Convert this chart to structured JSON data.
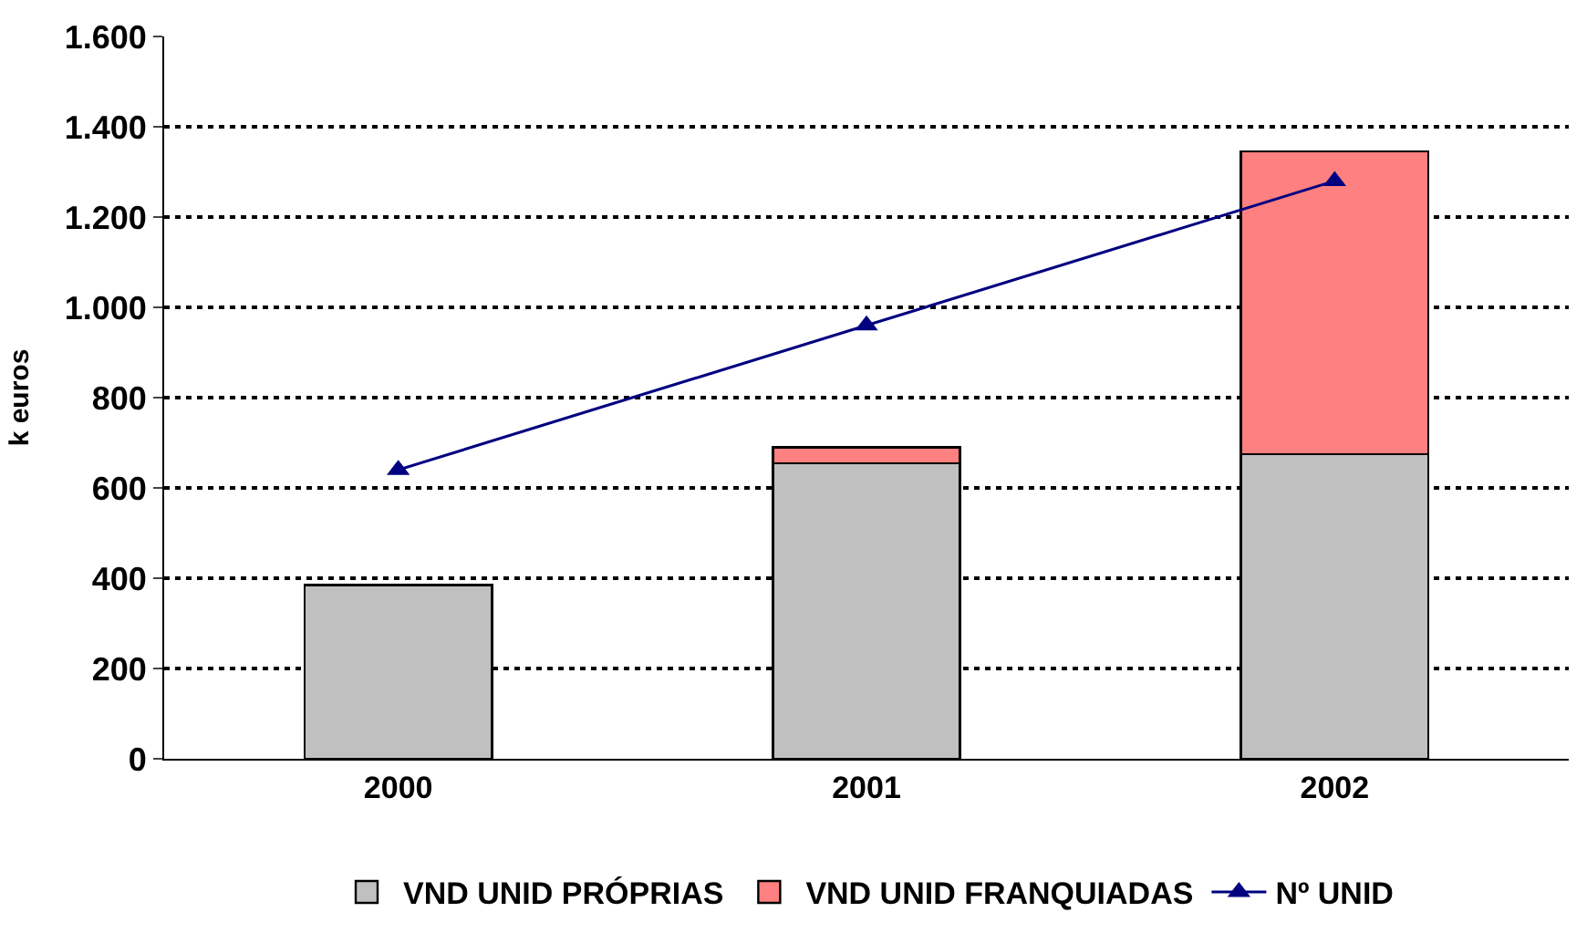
{
  "chart_data": {
    "type": "bar",
    "ylabel": "k euros",
    "categories": [
      "2000",
      "2001",
      "2002"
    ],
    "stacked": true,
    "series": [
      {
        "name": "VND UNID PRÓPRIAS",
        "color": "#c0c0c0",
        "values": [
          385,
          655,
          675
        ]
      },
      {
        "name": "VND UNID FRANQUIADAS",
        "color": "#ff8080",
        "values": [
          null,
          35,
          670
        ]
      },
      {
        "name": "Nº UNID",
        "type": "line",
        "color": "#000080",
        "values": [
          640,
          960,
          1280
        ],
        "marker": "triangle"
      }
    ],
    "ylim": [
      0,
      1600
    ],
    "yticks": [
      {
        "value": 0,
        "label": "0"
      },
      {
        "value": 200,
        "label": "200"
      },
      {
        "value": 400,
        "label": "400"
      },
      {
        "value": 600,
        "label": "600"
      },
      {
        "value": 800,
        "label": "800"
      },
      {
        "value": 1000,
        "label": "1.000"
      },
      {
        "value": 1200,
        "label": "1.200"
      },
      {
        "value": 1400,
        "label": "1.400"
      },
      {
        "value": 1600,
        "label": "1.600"
      }
    ],
    "grid": "y",
    "legend": "bottom"
  }
}
